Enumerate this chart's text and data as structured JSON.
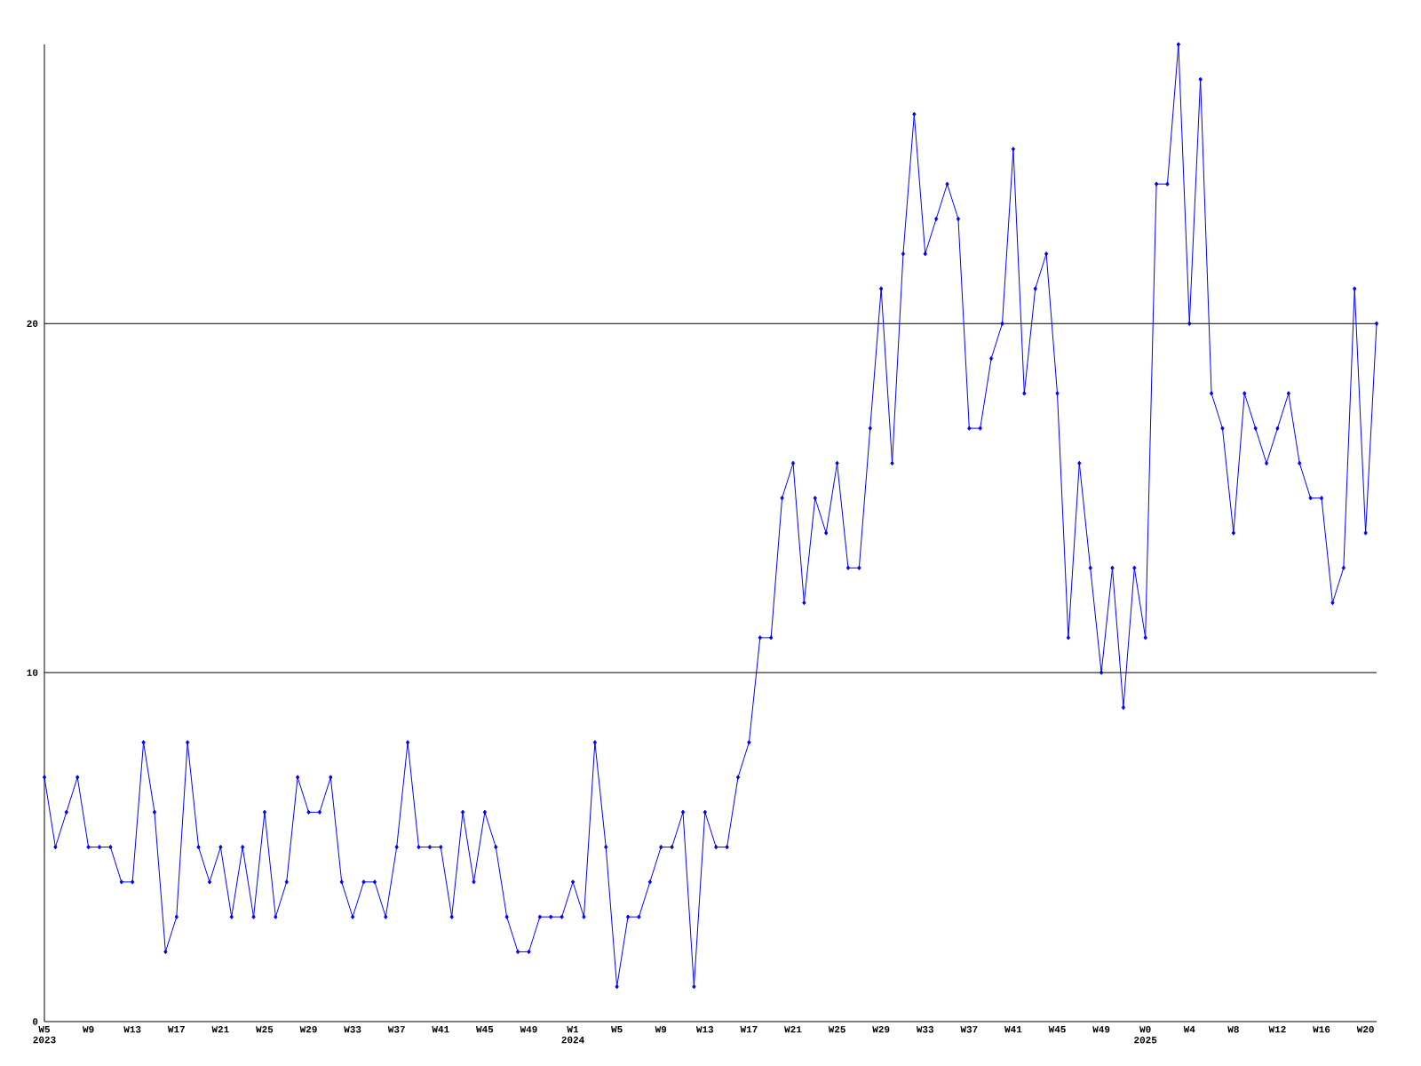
{
  "chart_data": {
    "type": "line",
    "categories": [
      "W5 2023",
      null,
      null,
      null,
      "W9",
      null,
      null,
      null,
      "W13",
      null,
      null,
      null,
      "W17",
      null,
      null,
      null,
      "W21",
      null,
      null,
      null,
      "W25",
      null,
      null,
      null,
      "W29",
      null,
      null,
      null,
      "W33",
      null,
      null,
      null,
      "W37",
      null,
      null,
      null,
      "W41",
      null,
      null,
      null,
      "W45",
      null,
      null,
      null,
      "W49",
      null,
      null,
      null,
      "W1 2024",
      null,
      null,
      null,
      "W5",
      null,
      null,
      null,
      "W9",
      null,
      null,
      null,
      "W13",
      null,
      null,
      null,
      "W17",
      null,
      null,
      null,
      "W21",
      null,
      null,
      null,
      "W25",
      null,
      null,
      null,
      "W29",
      null,
      null,
      null,
      "W33",
      null,
      null,
      null,
      "W37",
      null,
      null,
      null,
      "W41",
      null,
      null,
      null,
      "W45",
      null,
      null,
      null,
      "W49",
      null,
      null,
      null,
      "W0 2025",
      null,
      null,
      null,
      "W4",
      null,
      null,
      null,
      "W8",
      null,
      null,
      null,
      "W12",
      null,
      null,
      null,
      "W16",
      null,
      null,
      null,
      "W20",
      null
    ],
    "values": [
      7,
      5,
      6,
      7,
      5,
      5,
      5,
      4,
      4,
      8,
      6,
      2,
      3,
      8,
      5,
      4,
      5,
      3,
      5,
      3,
      6,
      3,
      4,
      7,
      6,
      6,
      7,
      4,
      3,
      4,
      4,
      3,
      5,
      8,
      5,
      5,
      5,
      3,
      6,
      4,
      6,
      5,
      3,
      2,
      2,
      3,
      3,
      3,
      4,
      3,
      8,
      5,
      1,
      3,
      3,
      4,
      5,
      5,
      6,
      1,
      6,
      5,
      5,
      7,
      8,
      11,
      11,
      15,
      16,
      12,
      15,
      14,
      16,
      13,
      13,
      17,
      21,
      16,
      22,
      26,
      22,
      23,
      24,
      23,
      17,
      17,
      19,
      20,
      25,
      18,
      21,
      22,
      18,
      11,
      16,
      13,
      10,
      13,
      9,
      13,
      11,
      24,
      24,
      28,
      20,
      27,
      18,
      17,
      14,
      18,
      17,
      16,
      17,
      18,
      16,
      15,
      15,
      12,
      13,
      21,
      14,
      20
    ],
    "color": "#0000ff",
    "marker": "diamond",
    "line_style": "solid",
    "ylim": [
      0,
      28
    ],
    "yticks": [
      0,
      10,
      20
    ],
    "grid": "y"
  }
}
